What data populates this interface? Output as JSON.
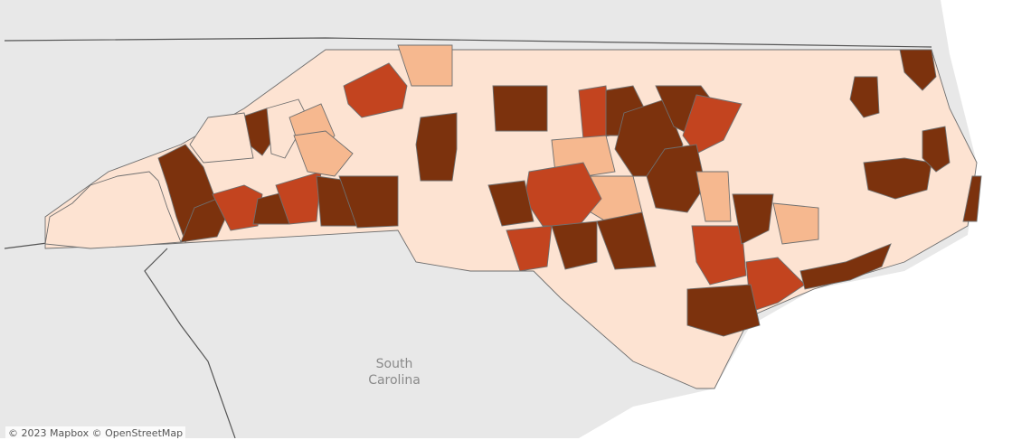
{
  "map": {
    "labels": {
      "south_carolina": "South\nCarolina"
    },
    "attribution": "© 2023 Mapbox © OpenStreetMap",
    "colors": {
      "land": "#e8e8e8",
      "ocean": "#ffffff",
      "county_border": "#6f6f6f",
      "state_border": "#555555",
      "choropleth_scale": [
        "#fde3d2",
        "#f6b88f",
        "#c3441f",
        "#7c320d"
      ]
    }
  }
}
